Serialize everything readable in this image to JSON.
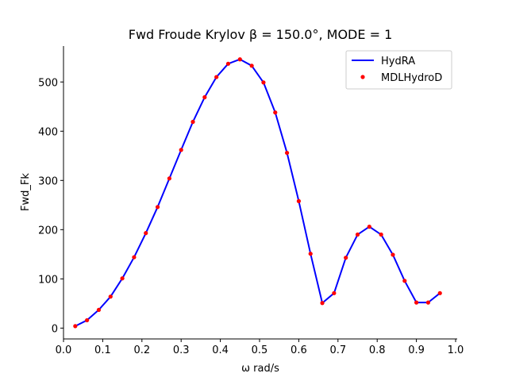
{
  "chart_data": {
    "type": "line",
    "title": "Fwd Froude Krylov β = 150.0°, MODE = 1",
    "xlabel": "ω rad/s",
    "ylabel": "Fwd_Fk",
    "xlim": [
      0.0,
      1.0
    ],
    "ylim": [
      -22,
      573
    ],
    "xticks": [
      "0.0",
      "0.1",
      "0.2",
      "0.3",
      "0.4",
      "0.5",
      "0.6",
      "0.7",
      "0.8",
      "0.9",
      "1.0"
    ],
    "yticks": [
      "0",
      "100",
      "200",
      "300",
      "400",
      "500"
    ],
    "grid": false,
    "legend_position": "top-right",
    "x": [
      0.03,
      0.06,
      0.09,
      0.12,
      0.15,
      0.18,
      0.21,
      0.24,
      0.27,
      0.3,
      0.33,
      0.36,
      0.39,
      0.42,
      0.45,
      0.48,
      0.51,
      0.54,
      0.57,
      0.6,
      0.63,
      0.66,
      0.69,
      0.72,
      0.75,
      0.78,
      0.81,
      0.84,
      0.87,
      0.9,
      0.93,
      0.96
    ],
    "series": [
      {
        "name": "HydRA",
        "style": "line",
        "color": "#0000ff",
        "values": [
          4,
          16,
          37,
          64,
          101,
          144,
          193,
          246,
          304,
          362,
          419,
          469,
          510,
          537,
          546,
          533,
          499,
          438,
          356,
          258,
          151,
          51,
          71,
          143,
          190,
          206,
          190,
          149,
          96,
          52,
          52,
          71
        ]
      },
      {
        "name": "MDLHydroD",
        "style": "markers",
        "color": "#ff0000",
        "values": [
          4,
          16,
          37,
          64,
          101,
          144,
          193,
          246,
          304,
          362,
          419,
          469,
          510,
          537,
          546,
          533,
          499,
          438,
          356,
          258,
          151,
          51,
          71,
          143,
          190,
          206,
          190,
          149,
          96,
          52,
          52,
          71
        ]
      }
    ]
  }
}
